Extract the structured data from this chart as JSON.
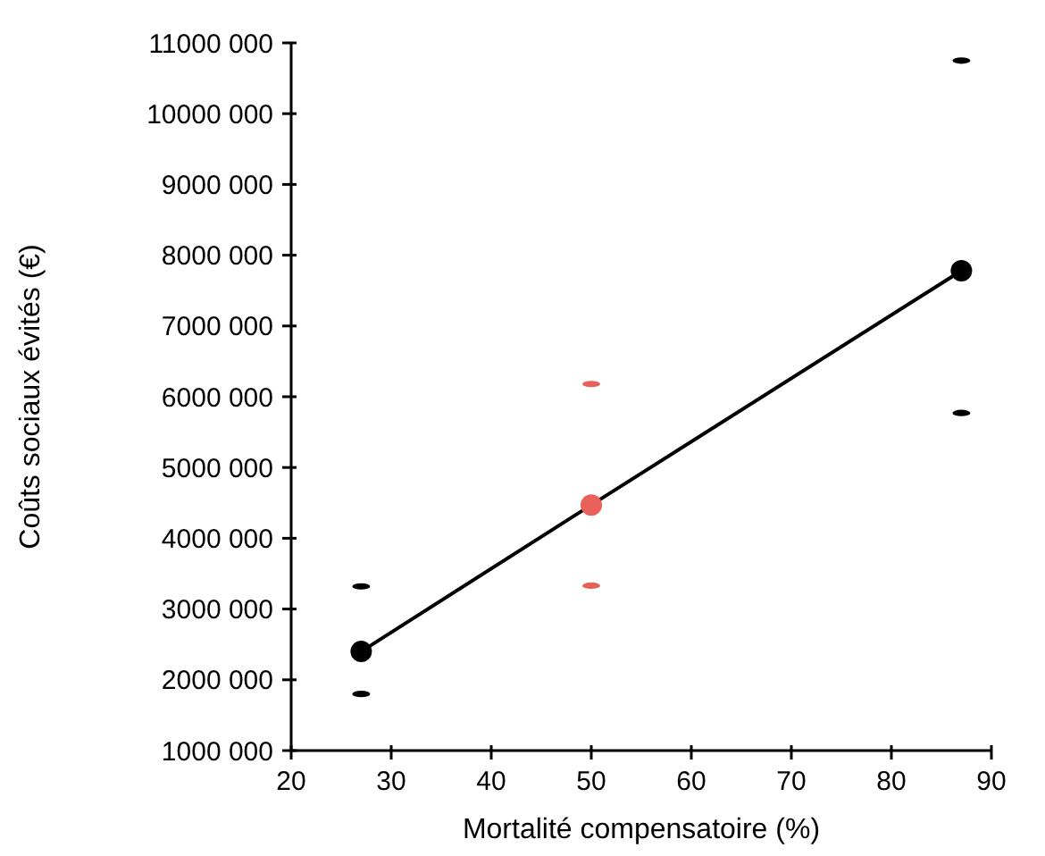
{
  "chart_data": {
    "type": "line",
    "xlabel": "Mortalité compensatoire (%)",
    "ylabel": "Coûts sociaux évités (€)",
    "x": [
      27,
      50,
      87
    ],
    "series": [
      {
        "color": "#000000",
        "colors": [
          "#000000",
          "#e8605a",
          "#000000"
        ],
        "values": [
          2400000,
          4470000,
          7780000
        ]
      },
      {
        "type": "scatter",
        "colors": [
          "#000000",
          "#e8605a",
          "#000000"
        ],
        "values": [
          1800000,
          3330000,
          5770000
        ]
      },
      {
        "type": "scatter",
        "colors": [
          "#000000",
          "#e8605a",
          "#000000"
        ],
        "values": [
          3320000,
          6180000,
          10750000
        ]
      }
    ],
    "xlim": [
      20,
      90
    ],
    "xticks": [
      20,
      30,
      40,
      50,
      60,
      70,
      80,
      90
    ],
    "ylim": [
      1000000,
      11000000
    ],
    "yticks": [
      {
        "value": 1000000,
        "label": "1000 000"
      },
      {
        "value": 2000000,
        "label": "2000 000"
      },
      {
        "value": 3000000,
        "label": "3000 000"
      },
      {
        "value": 4000000,
        "label": "4000 000"
      },
      {
        "value": 5000000,
        "label": "5000 000"
      },
      {
        "value": 6000000,
        "label": "6000 000"
      },
      {
        "value": 7000000,
        "label": "7000 000"
      },
      {
        "value": 8000000,
        "label": "8000 000"
      },
      {
        "value": 9000000,
        "label": "9000 000"
      },
      {
        "value": 10000000,
        "label": "10000 000"
      },
      {
        "value": 11000000,
        "label": "11000 000"
      }
    ],
    "marker": "circle",
    "line_style": "solid",
    "grid": false
  }
}
